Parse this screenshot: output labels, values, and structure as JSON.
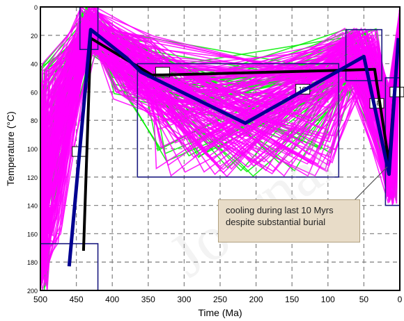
{
  "chart_data": {
    "type": "line",
    "title": "",
    "xlabel": "Time (Ma)",
    "ylabel": "Temperature (°C)",
    "xlim": [
      500,
      0
    ],
    "ylim": [
      200,
      0
    ],
    "x_ticks": [
      "500",
      "450",
      "400",
      "350",
      "300",
      "250",
      "200",
      "150",
      "100",
      "50",
      "0"
    ],
    "y_ticks": [
      "0",
      "20",
      "40",
      "60",
      "80",
      "100",
      "120",
      "140",
      "160",
      "180",
      "200"
    ],
    "grid": true,
    "series": [
      {
        "color": "#ff00ff",
        "role": "envelope (acceptable fits)"
      },
      {
        "color": "#00ee00",
        "role": "envelope (good fits)"
      },
      {
        "color": "#000000",
        "role": "weighted mean path",
        "x": [
          440,
          430,
          345,
          330,
          35,
          15,
          2
        ],
        "y": [
          172,
          22,
          48,
          48,
          44,
          110,
          22
        ]
      },
      {
        "color": "#000090",
        "role": "best fit path",
        "x": [
          460,
          430,
          380,
          360,
          215,
          50,
          15,
          2
        ],
        "y": [
          183,
          16,
          36,
          46,
          82,
          35,
          118,
          22
        ]
      }
    ],
    "constraint_boxes": [
      {
        "label": "1F",
        "x": [
          500,
          420
        ],
        "y": [
          167,
          200
        ]
      },
      {
        "label": "",
        "x": [
          445,
          420
        ],
        "y": [
          0,
          30
        ]
      },
      {
        "label": "1G",
        "x": [
          365,
          85
        ],
        "y": [
          40,
          120
        ]
      },
      {
        "label": "",
        "x": [
          75,
          25
        ],
        "y": [
          16,
          52
        ]
      },
      {
        "label": "1E",
        "x": [
          20,
          0
        ],
        "y": [
          50,
          140
        ]
      }
    ],
    "annotations": [
      {
        "text_lines": [
          "cooling during last 10 Myrs",
          "despite substantial burial"
        ]
      }
    ],
    "colors": {
      "magenta": "#ff00ff",
      "green": "#00ee00",
      "mean": "#000000",
      "best": "#000090",
      "grid": "#888888",
      "callout_bg": "#e8dcc8"
    }
  }
}
